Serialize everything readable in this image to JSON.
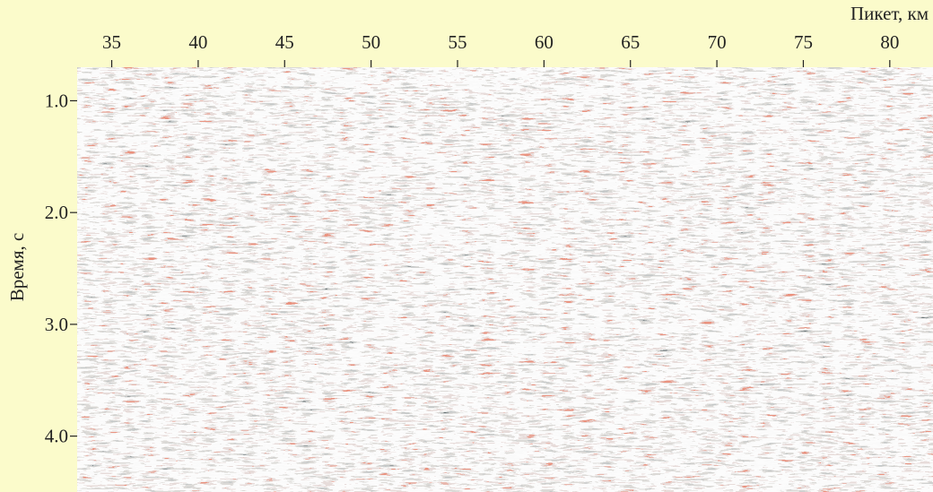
{
  "chart_data": {
    "type": "seismic-section",
    "x_label": "Пикет, км",
    "y_label": "Время, с",
    "xlim": [
      33,
      82.5
    ],
    "xticks": [
      35,
      40,
      45,
      50,
      55,
      60,
      65,
      70,
      75,
      80
    ],
    "ylim": [
      0.7,
      4.5
    ],
    "yticks": [
      {
        "value": 1,
        "label": "1.0"
      },
      {
        "value": 2,
        "label": "2.0"
      },
      {
        "value": 3,
        "label": "3.0"
      },
      {
        "value": 4,
        "label": "4.0"
      }
    ],
    "y_inverted": true,
    "x_axis_position": "top"
  }
}
